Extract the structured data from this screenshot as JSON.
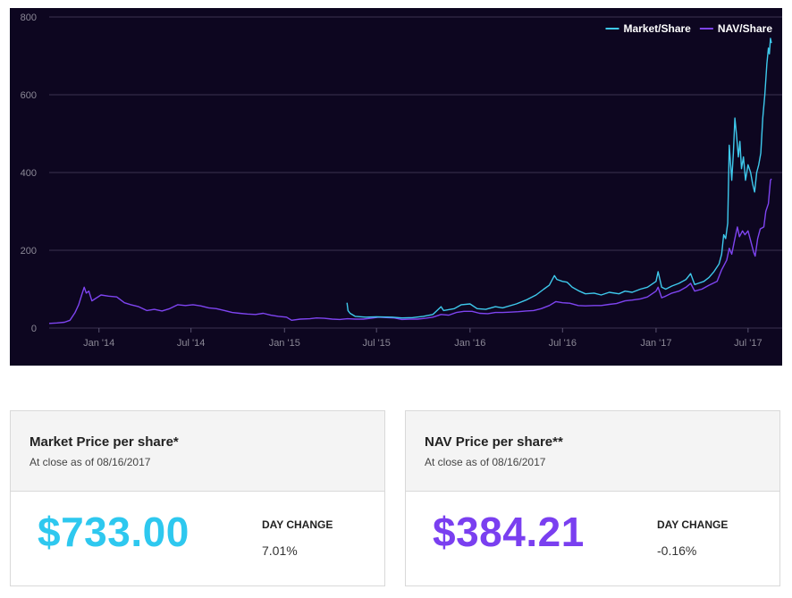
{
  "chart_data": {
    "type": "line",
    "x_axis": {
      "type": "date",
      "ticks": [
        {
          "date": "2014-01-01",
          "label": "Jan '14"
        },
        {
          "date": "2014-07-01",
          "label": "Jul '14"
        },
        {
          "date": "2015-01-01",
          "label": "Jan '15"
        },
        {
          "date": "2015-07-01",
          "label": "Jul '15"
        },
        {
          "date": "2016-01-01",
          "label": "Jan '16"
        },
        {
          "date": "2016-07-01",
          "label": "Jul '16"
        },
        {
          "date": "2017-01-01",
          "label": "Jan '17"
        },
        {
          "date": "2017-07-01",
          "label": "Jul '17"
        }
      ],
      "range": [
        "2013-09-25",
        "2017-08-16"
      ]
    },
    "y_axis": {
      "range": [
        0,
        800
      ],
      "ticks": [
        0,
        200,
        400,
        600,
        800
      ]
    },
    "grid": "horizontal",
    "legend_position": "top-right",
    "series": [
      {
        "name": "Market/Share",
        "color": "#3ec9ec",
        "points": [
          [
            "2015-05-04",
            65
          ],
          [
            "2015-05-06",
            45
          ],
          [
            "2015-05-10",
            38
          ],
          [
            "2015-05-20",
            30
          ],
          [
            "2015-06-10",
            28
          ],
          [
            "2015-07-01",
            29
          ],
          [
            "2015-08-01",
            28
          ],
          [
            "2015-08-20",
            26
          ],
          [
            "2015-09-10",
            27
          ],
          [
            "2015-10-01",
            30
          ],
          [
            "2015-10-20",
            35
          ],
          [
            "2015-11-05",
            55
          ],
          [
            "2015-11-10",
            45
          ],
          [
            "2015-12-01",
            50
          ],
          [
            "2015-12-15",
            60
          ],
          [
            "2016-01-01",
            62
          ],
          [
            "2016-01-15",
            50
          ],
          [
            "2016-02-01",
            48
          ],
          [
            "2016-02-20",
            55
          ],
          [
            "2016-03-05",
            52
          ],
          [
            "2016-04-01",
            62
          ],
          [
            "2016-04-20",
            72
          ],
          [
            "2016-05-10",
            85
          ],
          [
            "2016-05-25",
            100
          ],
          [
            "2016-06-05",
            110
          ],
          [
            "2016-06-15",
            135
          ],
          [
            "2016-06-20",
            125
          ],
          [
            "2016-07-01",
            120
          ],
          [
            "2016-07-10",
            118
          ],
          [
            "2016-07-20",
            105
          ],
          [
            "2016-08-03",
            95
          ],
          [
            "2016-08-15",
            88
          ],
          [
            "2016-09-01",
            90
          ],
          [
            "2016-09-15",
            85
          ],
          [
            "2016-10-01",
            92
          ],
          [
            "2016-10-20",
            88
          ],
          [
            "2016-11-01",
            95
          ],
          [
            "2016-11-15",
            92
          ],
          [
            "2016-12-01",
            100
          ],
          [
            "2016-12-15",
            105
          ],
          [
            "2017-01-01",
            120
          ],
          [
            "2017-01-05",
            145
          ],
          [
            "2017-01-12",
            105
          ],
          [
            "2017-01-20",
            100
          ],
          [
            "2017-02-01",
            108
          ],
          [
            "2017-02-15",
            115
          ],
          [
            "2017-03-01",
            125
          ],
          [
            "2017-03-10",
            140
          ],
          [
            "2017-03-18",
            112
          ],
          [
            "2017-03-25",
            115
          ],
          [
            "2017-04-05",
            120
          ],
          [
            "2017-04-15",
            130
          ],
          [
            "2017-04-25",
            145
          ],
          [
            "2017-05-05",
            165
          ],
          [
            "2017-05-10",
            190
          ],
          [
            "2017-05-14",
            240
          ],
          [
            "2017-05-18",
            230
          ],
          [
            "2017-05-22",
            270
          ],
          [
            "2017-05-25",
            470
          ],
          [
            "2017-05-30",
            380
          ],
          [
            "2017-06-02",
            450
          ],
          [
            "2017-06-05",
            540
          ],
          [
            "2017-06-08",
            500
          ],
          [
            "2017-06-12",
            440
          ],
          [
            "2017-06-15",
            480
          ],
          [
            "2017-06-18",
            410
          ],
          [
            "2017-06-22",
            440
          ],
          [
            "2017-06-26",
            380
          ],
          [
            "2017-07-01",
            420
          ],
          [
            "2017-07-06",
            400
          ],
          [
            "2017-07-10",
            370
          ],
          [
            "2017-07-14",
            350
          ],
          [
            "2017-07-18",
            400
          ],
          [
            "2017-07-22",
            420
          ],
          [
            "2017-07-26",
            450
          ],
          [
            "2017-07-30",
            540
          ],
          [
            "2017-08-03",
            600
          ],
          [
            "2017-08-07",
            680
          ],
          [
            "2017-08-10",
            720
          ],
          [
            "2017-08-12",
            705
          ],
          [
            "2017-08-14",
            745
          ],
          [
            "2017-08-16",
            733
          ]
        ]
      },
      {
        "name": "NAV/Share",
        "color": "#7e44f0",
        "points": [
          [
            "2013-09-25",
            12
          ],
          [
            "2013-10-10",
            13
          ],
          [
            "2013-10-25",
            15
          ],
          [
            "2013-11-05",
            20
          ],
          [
            "2013-11-15",
            40
          ],
          [
            "2013-11-22",
            60
          ],
          [
            "2013-11-28",
            85
          ],
          [
            "2013-12-03",
            105
          ],
          [
            "2013-12-07",
            90
          ],
          [
            "2013-12-12",
            95
          ],
          [
            "2013-12-18",
            70
          ],
          [
            "2013-12-24",
            75
          ],
          [
            "2014-01-05",
            85
          ],
          [
            "2014-01-20",
            82
          ],
          [
            "2014-02-05",
            80
          ],
          [
            "2014-02-20",
            65
          ],
          [
            "2014-03-05",
            60
          ],
          [
            "2014-03-20",
            55
          ],
          [
            "2014-04-05",
            45
          ],
          [
            "2014-04-20",
            48
          ],
          [
            "2014-05-05",
            44
          ],
          [
            "2014-05-20",
            50
          ],
          [
            "2014-06-05",
            60
          ],
          [
            "2014-06-20",
            58
          ],
          [
            "2014-07-05",
            60
          ],
          [
            "2014-07-20",
            57
          ],
          [
            "2014-08-05",
            52
          ],
          [
            "2014-08-20",
            50
          ],
          [
            "2014-09-05",
            45
          ],
          [
            "2014-09-20",
            40
          ],
          [
            "2014-10-05",
            38
          ],
          [
            "2014-10-20",
            36
          ],
          [
            "2014-11-05",
            35
          ],
          [
            "2014-11-20",
            38
          ],
          [
            "2014-12-05",
            33
          ],
          [
            "2014-12-20",
            30
          ],
          [
            "2015-01-05",
            28
          ],
          [
            "2015-01-15",
            20
          ],
          [
            "2015-02-01",
            23
          ],
          [
            "2015-02-20",
            24
          ],
          [
            "2015-03-05",
            26
          ],
          [
            "2015-03-20",
            25
          ],
          [
            "2015-04-05",
            23
          ],
          [
            "2015-04-20",
            22
          ],
          [
            "2015-05-05",
            24
          ],
          [
            "2015-05-20",
            23
          ],
          [
            "2015-06-05",
            23
          ],
          [
            "2015-06-20",
            25
          ],
          [
            "2015-07-05",
            28
          ],
          [
            "2015-07-20",
            27
          ],
          [
            "2015-08-05",
            26
          ],
          [
            "2015-08-20",
            22
          ],
          [
            "2015-09-05",
            23
          ],
          [
            "2015-09-20",
            23
          ],
          [
            "2015-10-05",
            25
          ],
          [
            "2015-10-20",
            28
          ],
          [
            "2015-11-05",
            35
          ],
          [
            "2015-11-20",
            33
          ],
          [
            "2015-12-05",
            40
          ],
          [
            "2015-12-20",
            43
          ],
          [
            "2016-01-05",
            43
          ],
          [
            "2016-01-20",
            38
          ],
          [
            "2016-02-05",
            37
          ],
          [
            "2016-02-20",
            40
          ],
          [
            "2016-03-05",
            40
          ],
          [
            "2016-03-20",
            41
          ],
          [
            "2016-04-05",
            42
          ],
          [
            "2016-04-20",
            44
          ],
          [
            "2016-05-05",
            45
          ],
          [
            "2016-05-20",
            50
          ],
          [
            "2016-06-05",
            58
          ],
          [
            "2016-06-18",
            68
          ],
          [
            "2016-07-01",
            65
          ],
          [
            "2016-07-15",
            64
          ],
          [
            "2016-08-01",
            58
          ],
          [
            "2016-08-15",
            57
          ],
          [
            "2016-09-01",
            58
          ],
          [
            "2016-09-15",
            58
          ],
          [
            "2016-10-01",
            61
          ],
          [
            "2016-10-15",
            63
          ],
          [
            "2016-11-01",
            70
          ],
          [
            "2016-11-15",
            72
          ],
          [
            "2016-12-01",
            75
          ],
          [
            "2016-12-15",
            80
          ],
          [
            "2017-01-01",
            95
          ],
          [
            "2017-01-05",
            105
          ],
          [
            "2017-01-12",
            78
          ],
          [
            "2017-01-20",
            82
          ],
          [
            "2017-02-01",
            90
          ],
          [
            "2017-02-15",
            95
          ],
          [
            "2017-03-01",
            105
          ],
          [
            "2017-03-10",
            115
          ],
          [
            "2017-03-18",
            95
          ],
          [
            "2017-04-01",
            100
          ],
          [
            "2017-04-15",
            110
          ],
          [
            "2017-05-01",
            120
          ],
          [
            "2017-05-10",
            150
          ],
          [
            "2017-05-20",
            175
          ],
          [
            "2017-05-25",
            205
          ],
          [
            "2017-05-30",
            190
          ],
          [
            "2017-06-05",
            230
          ],
          [
            "2017-06-10",
            260
          ],
          [
            "2017-06-14",
            235
          ],
          [
            "2017-06-20",
            250
          ],
          [
            "2017-06-25",
            240
          ],
          [
            "2017-07-01",
            250
          ],
          [
            "2017-07-05",
            230
          ],
          [
            "2017-07-12",
            195
          ],
          [
            "2017-07-15",
            185
          ],
          [
            "2017-07-20",
            230
          ],
          [
            "2017-07-25",
            255
          ],
          [
            "2017-08-01",
            260
          ],
          [
            "2017-08-05",
            300
          ],
          [
            "2017-08-10",
            320
          ],
          [
            "2017-08-14",
            380
          ],
          [
            "2017-08-16",
            384
          ]
        ]
      }
    ]
  },
  "cards": {
    "market": {
      "title": "Market Price per share*",
      "subtitle": "At close as of 08/16/2017",
      "price": "$733.00",
      "price_color": "#2ec8ef",
      "change_label": "DAY CHANGE",
      "change_value": "7.01%"
    },
    "nav": {
      "title": "NAV Price per share**",
      "subtitle": "At close as of 08/16/2017",
      "price": "$384.21",
      "price_color": "#7a3ff0",
      "change_label": "DAY CHANGE",
      "change_value": "-0.16%"
    }
  }
}
